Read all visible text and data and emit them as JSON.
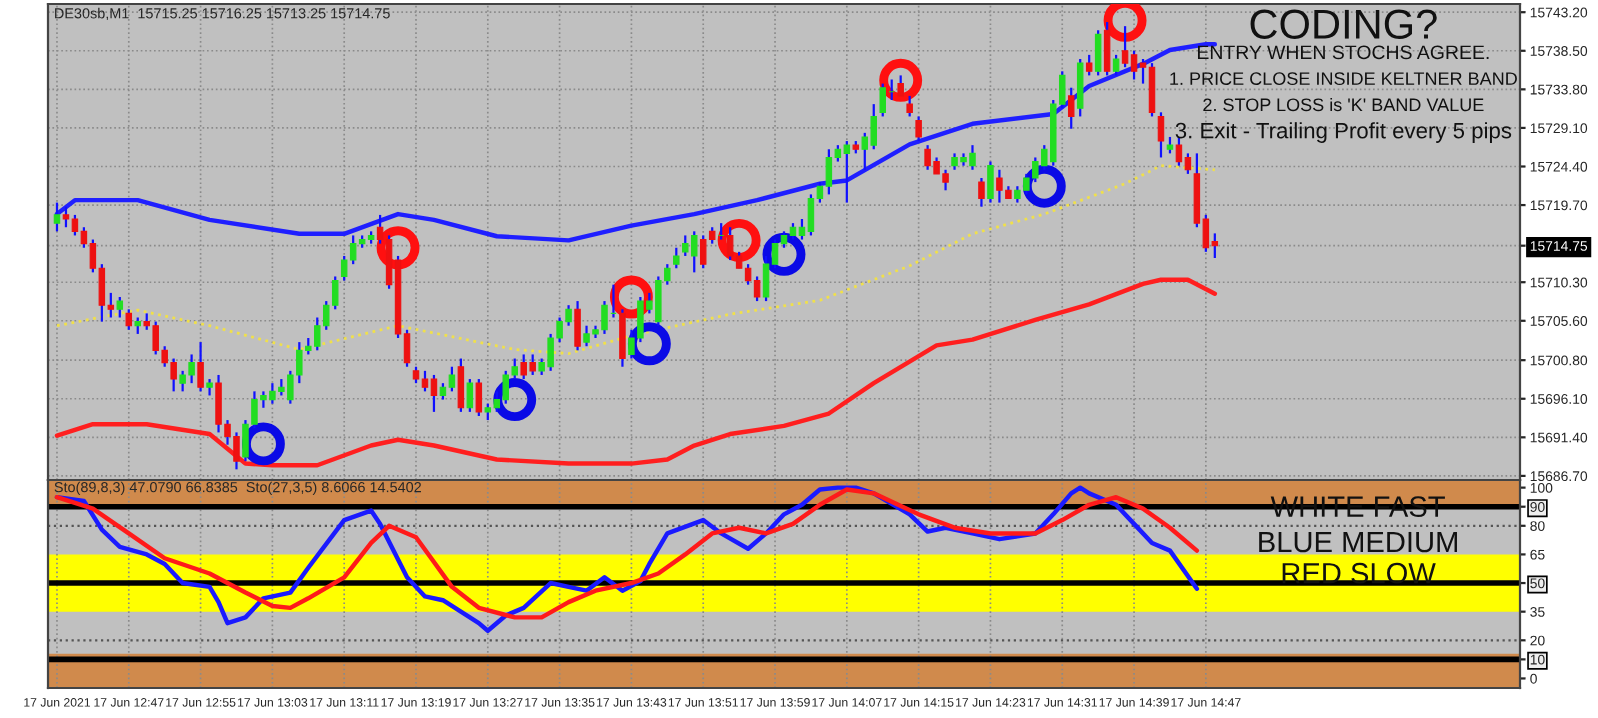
{
  "chart_data": [
    {
      "type": "candlestick",
      "title": "DE30sb,M1  15715.25 15716.25 15713.25 15714.75",
      "x": [
        "2021-06-17T12:39",
        "2021-06-17T12:40",
        "2021-06-17T12:41",
        "2021-06-17T12:42",
        "2021-06-17T12:43",
        "2021-06-17T12:44",
        "2021-06-17T12:45",
        "2021-06-17T12:46",
        "2021-06-17T12:47",
        "2021-06-17T12:48",
        "2021-06-17T12:49",
        "2021-06-17T12:50",
        "2021-06-17T12:51",
        "2021-06-17T12:52",
        "2021-06-17T12:53",
        "2021-06-17T12:54",
        "2021-06-17T12:55",
        "2021-06-17T12:56",
        "2021-06-17T12:57",
        "2021-06-17T12:58",
        "2021-06-17T12:59",
        "2021-06-17T13:00",
        "2021-06-17T13:01",
        "2021-06-17T13:02",
        "2021-06-17T13:03",
        "2021-06-17T13:04",
        "2021-06-17T13:05",
        "2021-06-17T13:06",
        "2021-06-17T13:07",
        "2021-06-17T13:08",
        "2021-06-17T13:09",
        "2021-06-17T13:10",
        "2021-06-17T13:11",
        "2021-06-17T13:12",
        "2021-06-17T13:13",
        "2021-06-17T13:14",
        "2021-06-17T13:15",
        "2021-06-17T13:16",
        "2021-06-17T13:17",
        "2021-06-17T13:18",
        "2021-06-17T13:19",
        "2021-06-17T13:20",
        "2021-06-17T13:21",
        "2021-06-17T13:22",
        "2021-06-17T13:23",
        "2021-06-17T13:24",
        "2021-06-17T13:25",
        "2021-06-17T13:26",
        "2021-06-17T13:27",
        "2021-06-17T13:28",
        "2021-06-17T13:29",
        "2021-06-17T13:30",
        "2021-06-17T13:31",
        "2021-06-17T13:32",
        "2021-06-17T13:33",
        "2021-06-17T13:34",
        "2021-06-17T13:35",
        "2021-06-17T13:36",
        "2021-06-17T13:37",
        "2021-06-17T13:38",
        "2021-06-17T13:39",
        "2021-06-17T13:40",
        "2021-06-17T13:41",
        "2021-06-17T13:42",
        "2021-06-17T13:43",
        "2021-06-17T13:44",
        "2021-06-17T13:45",
        "2021-06-17T13:46",
        "2021-06-17T13:47",
        "2021-06-17T13:48",
        "2021-06-17T13:49",
        "2021-06-17T13:50",
        "2021-06-17T13:51",
        "2021-06-17T13:52",
        "2021-06-17T13:53",
        "2021-06-17T13:54",
        "2021-06-17T13:55",
        "2021-06-17T13:56",
        "2021-06-17T13:57",
        "2021-06-17T13:58",
        "2021-06-17T13:59",
        "2021-06-17T14:00",
        "2021-06-17T14:01",
        "2021-06-17T14:02",
        "2021-06-17T14:03",
        "2021-06-17T14:04",
        "2021-06-17T14:05",
        "2021-06-17T14:06",
        "2021-06-17T14:07",
        "2021-06-17T14:08",
        "2021-06-17T14:09",
        "2021-06-17T14:10",
        "2021-06-17T14:11",
        "2021-06-17T14:12",
        "2021-06-17T14:13",
        "2021-06-17T14:14",
        "2021-06-17T14:15",
        "2021-06-17T14:16",
        "2021-06-17T14:17",
        "2021-06-17T14:18",
        "2021-06-17T14:19",
        "2021-06-17T14:20",
        "2021-06-17T14:21",
        "2021-06-17T14:22",
        "2021-06-17T14:23",
        "2021-06-17T14:24",
        "2021-06-17T14:25",
        "2021-06-17T14:26",
        "2021-06-17T14:27",
        "2021-06-17T14:28",
        "2021-06-17T14:29",
        "2021-06-17T14:30",
        "2021-06-17T14:31",
        "2021-06-17T14:32",
        "2021-06-17T14:33",
        "2021-06-17T14:34",
        "2021-06-17T14:35",
        "2021-06-17T14:36",
        "2021-06-17T14:37",
        "2021-06-17T14:38",
        "2021-06-17T14:39",
        "2021-06-17T14:40",
        "2021-06-17T14:41",
        "2021-06-17T14:42",
        "2021-06-17T14:43",
        "2021-06-17T14:44",
        "2021-06-17T14:45",
        "2021-06-17T14:46",
        "2021-06-17T14:47",
        "2021-06-17T14:48"
      ],
      "ohlc": [
        [
          15717.5,
          15720,
          15716.5,
          15718.5
        ],
        [
          15718.5,
          15719.5,
          15717,
          15718
        ],
        [
          15718,
          15718.5,
          15716,
          15716.5
        ],
        [
          15716.5,
          15717,
          15714.5,
          15715
        ],
        [
          15715,
          15715.5,
          15711.5,
          15712
        ],
        [
          15712,
          15712.5,
          15705.5,
          15707.5
        ],
        [
          15707.5,
          15709,
          15706,
          15707
        ],
        [
          15707,
          15708.5,
          15706,
          15708
        ],
        [
          15706.5,
          15707,
          15704.5,
          15705
        ],
        [
          15705,
          15706,
          15704,
          15705.5
        ],
        [
          15705.5,
          15706.5,
          15704.5,
          15705
        ],
        [
          15705,
          15705.5,
          15701.5,
          15702
        ],
        [
          15702,
          15702.5,
          15700,
          15700.5
        ],
        [
          15700.5,
          15701,
          15697,
          15698.5
        ],
        [
          15698,
          15699.5,
          15697,
          15699
        ],
        [
          15699,
          15701.5,
          15698,
          15700.5
        ],
        [
          15700.5,
          15703,
          15697,
          15697.5
        ],
        [
          15697.5,
          15698.5,
          15696.5,
          15698
        ],
        [
          15698,
          15699,
          15692,
          15693
        ],
        [
          15693,
          15693.5,
          15690.5,
          15691.5
        ],
        [
          15691.5,
          15692,
          15687.5,
          15688.5
        ],
        [
          15689,
          15693.5,
          15688.5,
          15693
        ],
        [
          15693,
          15697,
          15692.5,
          15696
        ],
        [
          15696,
          15697,
          15695,
          15696.5
        ],
        [
          15696,
          15698,
          15695.5,
          15697
        ],
        [
          15697,
          15698.5,
          15696.5,
          15697.5
        ],
        [
          15696,
          15699.5,
          15695.5,
          15699
        ],
        [
          15699,
          15703,
          15698,
          15702
        ],
        [
          15702,
          15703.5,
          15701.5,
          15702.5
        ],
        [
          15702.5,
          15706,
          15702,
          15705
        ],
        [
          15705,
          15708,
          15704.5,
          15707.5
        ],
        [
          15707.5,
          15711,
          15707,
          15710.5
        ],
        [
          15711,
          15713.5,
          15710.5,
          15713
        ],
        [
          15713,
          15716,
          15712.5,
          15715
        ],
        [
          15715,
          15716,
          15714.5,
          15715.5
        ],
        [
          15715.5,
          15716.5,
          15715,
          15716
        ],
        [
          15717,
          15718.5,
          15715,
          15715.5
        ],
        [
          15715.5,
          15716,
          15709.5,
          15710
        ],
        [
          15713,
          15713.5,
          15703.5,
          15704
        ],
        [
          15704,
          15704.5,
          15700,
          15700.5
        ],
        [
          15699.5,
          15700,
          15698,
          15698.5
        ],
        [
          15698.5,
          15699.5,
          15697,
          15697.5
        ],
        [
          15698.5,
          15699,
          15694.5,
          15696.5
        ],
        [
          15696.5,
          15698,
          15696,
          15697.5
        ],
        [
          15697.5,
          15700,
          15697,
          15699
        ],
        [
          15700,
          15701,
          15694.5,
          15695
        ],
        [
          15695,
          15698.5,
          15694.5,
          15698
        ],
        [
          15698,
          15698.5,
          15694,
          15694.5
        ],
        [
          15694.5,
          15695.5,
          15693.5,
          15695
        ],
        [
          15695,
          15697,
          15694.5,
          15696
        ],
        [
          15696,
          15699.5,
          15695.5,
          15699
        ],
        [
          15699,
          15701,
          15698.5,
          15700
        ],
        [
          15700.5,
          15701.5,
          15698.5,
          15699
        ],
        [
          15700.5,
          15701.5,
          15699,
          15699.5
        ],
        [
          15699.5,
          15701,
          15699,
          15700.5
        ],
        [
          15700,
          15704,
          15699.5,
          15703.5
        ],
        [
          15703.5,
          15706,
          15703,
          15705.5
        ],
        [
          15705.5,
          15707.5,
          15705,
          15707
        ],
        [
          15707,
          15708,
          15702,
          15702.5
        ],
        [
          15703,
          15705,
          15702.5,
          15704
        ],
        [
          15704,
          15705,
          15703.5,
          15704.5
        ],
        [
          15704.5,
          15708,
          15704,
          15707.5
        ],
        [
          15706.5,
          15710,
          15706,
          15706.5
        ],
        [
          15706.5,
          15707,
          15700,
          15701
        ],
        [
          15701.5,
          15704.5,
          15701,
          15703.5
        ],
        [
          15703.5,
          15708.5,
          15703,
          15708
        ],
        [
          15707,
          15709,
          15706.5,
          15708
        ],
        [
          15705.5,
          15711,
          15705,
          15710.5
        ],
        [
          15710.5,
          15712.5,
          15710,
          15712
        ],
        [
          15712.5,
          15714.5,
          15712,
          15713.5
        ],
        [
          15714,
          15716,
          15713.5,
          15715
        ],
        [
          15713.5,
          15716.5,
          15711.5,
          15716
        ],
        [
          15715.5,
          15716,
          15712,
          15712.5
        ],
        [
          15716.5,
          15717,
          15715,
          15715.5
        ],
        [
          15716,
          15717.5,
          15715.5,
          15716
        ],
        [
          15716,
          15717,
          15713,
          15713.5
        ],
        [
          15713.5,
          15714,
          15712,
          15712
        ],
        [
          15712,
          15712.5,
          15710,
          15710.5
        ],
        [
          15710.5,
          15711,
          15708,
          15708.5
        ],
        [
          15708.5,
          15713.5,
          15708,
          15712.5
        ],
        [
          15712.5,
          15715.5,
          15712,
          15715
        ],
        [
          15715,
          15716.5,
          15714.5,
          15716
        ],
        [
          15716,
          15717.5,
          15715.5,
          15717
        ],
        [
          15716,
          15718,
          15715.5,
          15717
        ],
        [
          15716.5,
          15721,
          15716,
          15720.5
        ],
        [
          15720.5,
          15722.5,
          15720,
          15722
        ],
        [
          15722,
          15726.5,
          15721,
          15725.5
        ],
        [
          15725.5,
          15727,
          15725,
          15726.5
        ],
        [
          15726,
          15727.5,
          15720,
          15727
        ],
        [
          15727,
          15727.5,
          15726,
          15726.5
        ],
        [
          15726.5,
          15728.5,
          15724,
          15728
        ],
        [
          15727,
          15732,
          15726.5,
          15730.5
        ],
        [
          15731,
          15734.5,
          15730.5,
          15734
        ],
        [
          15733.5,
          15735,
          15732.5,
          15733.5
        ],
        [
          15734.5,
          15735.5,
          15733,
          15733
        ],
        [
          15732,
          15733,
          15730.5,
          15731
        ],
        [
          15730,
          15730.5,
          15727.5,
          15728
        ],
        [
          15726.5,
          15727,
          15724,
          15724.5
        ],
        [
          15725,
          15725.5,
          15723.5,
          15723.5
        ],
        [
          15723.5,
          15724,
          15721.5,
          15722.5
        ],
        [
          15724.5,
          15726,
          15724,
          15725.5
        ],
        [
          15725,
          15726,
          15724.5,
          15725.5
        ],
        [
          15724.5,
          15727,
          15724,
          15726
        ],
        [
          15722.5,
          15723,
          15719.5,
          15720.5
        ],
        [
          15720.5,
          15725,
          15720,
          15724.5
        ],
        [
          15723,
          15724,
          15720,
          15721.5
        ],
        [
          15721.5,
          15722,
          15720.5,
          15720.5
        ],
        [
          15720.5,
          15722,
          15720,
          15721.5
        ],
        [
          15721.5,
          15723.5,
          15721,
          15723
        ],
        [
          15723,
          15725.5,
          15722.5,
          15725
        ],
        [
          15724.5,
          15727,
          15724,
          15726.5
        ],
        [
          15725,
          15732.5,
          15724.5,
          15732
        ],
        [
          15732,
          15736,
          15731.5,
          15735.5
        ],
        [
          15733,
          15734,
          15729,
          15730.5
        ],
        [
          15731.5,
          15737.5,
          15730.5,
          15737
        ],
        [
          15737,
          15738,
          15735.5,
          15736
        ],
        [
          15736,
          15741,
          15735.5,
          15740.5
        ],
        [
          15741,
          15742,
          15735.5,
          15736
        ],
        [
          15736,
          15738,
          15735.5,
          15737.5
        ],
        [
          15738.5,
          15741.5,
          15736.5,
          15737
        ],
        [
          15738,
          15738.5,
          15735,
          15736
        ],
        [
          15737,
          15737.5,
          15734.5,
          15736.5
        ],
        [
          15736.5,
          15737,
          15730.5,
          15731
        ],
        [
          15730.5,
          15731,
          15725.5,
          15727.5
        ],
        [
          15726.5,
          15728,
          15726,
          15727
        ],
        [
          15727,
          15728,
          15724.5,
          15725
        ],
        [
          15725.5,
          15726,
          15723.5,
          15724
        ],
        [
          15723.5,
          15726,
          15717,
          15717.5
        ],
        [
          15718,
          15718.5,
          15714,
          15714.5
        ],
        [
          15715.25,
          15716.25,
          15713.25,
          15714.75
        ]
      ],
      "series": [
        {
          "type": "line",
          "color": "#1f1fff",
          "line_style": "solid",
          "x": [
            "2021-06-17T12:39",
            "2021-06-17T12:41",
            "2021-06-17T12:48",
            "2021-06-17T12:56",
            "2021-06-17T13:06",
            "2021-06-17T13:11",
            "2021-06-17T13:17",
            "2021-06-17T13:21",
            "2021-06-17T13:28",
            "2021-06-17T13:36",
            "2021-06-17T13:43",
            "2021-06-17T13:50",
            "2021-06-17T13:57",
            "2021-06-17T14:04",
            "2021-06-17T14:07",
            "2021-06-17T14:14",
            "2021-06-17T14:21",
            "2021-06-17T14:30",
            "2021-06-17T14:34",
            "2021-06-17T14:40",
            "2021-06-17T14:43",
            "2021-06-17T14:47",
            "2021-06-17T14:48"
          ],
          "values": [
            15718.6,
            15720.3,
            15720.3,
            15717.9,
            15716.2,
            15716.2,
            15718.6,
            15717.9,
            15715.9,
            15715.4,
            15717.2,
            15718.6,
            15720.3,
            15722.3,
            15722.7,
            15727.1,
            15729.6,
            15730.8,
            15734.2,
            15736.9,
            15738.6,
            15739.3,
            15739.3
          ]
        },
        {
          "type": "line",
          "color": "#f0e04a",
          "line_style": "dotted",
          "x": [
            "2021-06-17T12:39",
            "2021-06-17T12:48",
            "2021-06-17T12:56",
            "2021-06-17T13:06",
            "2021-06-17T13:17",
            "2021-06-17T13:30",
            "2021-06-17T13:36",
            "2021-06-17T13:43",
            "2021-06-17T13:54",
            "2021-06-17T14:04",
            "2021-06-17T14:14",
            "2021-06-17T14:21",
            "2021-06-17T14:29",
            "2021-06-17T14:38",
            "2021-06-17T14:42",
            "2021-06-17T14:48"
          ],
          "values": [
            15705.0,
            15706.9,
            15705.0,
            15702.1,
            15705.0,
            15702.1,
            15701.6,
            15703.8,
            15706.4,
            15708.1,
            15712.3,
            15716.2,
            15718.6,
            15722.3,
            15724.5,
            15724.0
          ]
        },
        {
          "type": "line",
          "color": "#ff1f1f",
          "line_style": "solid",
          "x": [
            "2021-06-17T12:39",
            "2021-06-17T12:43",
            "2021-06-17T12:49",
            "2021-06-17T12:56",
            "2021-06-17T13:00",
            "2021-06-17T13:03",
            "2021-06-17T13:08",
            "2021-06-17T13:14",
            "2021-06-17T13:17",
            "2021-06-17T13:21",
            "2021-06-17T13:28",
            "2021-06-17T13:36",
            "2021-06-17T13:43",
            "2021-06-17T13:47",
            "2021-06-17T13:50",
            "2021-06-17T13:54",
            "2021-06-17T14:00",
            "2021-06-17T14:05",
            "2021-06-17T14:10",
            "2021-06-17T14:17",
            "2021-06-17T14:21",
            "2021-06-17T14:28",
            "2021-06-17T14:34",
            "2021-06-17T14:40",
            "2021-06-17T14:42",
            "2021-06-17T14:45",
            "2021-06-17T14:48"
          ],
          "values": [
            15691.6,
            15693.0,
            15693.0,
            15691.8,
            15688.2,
            15688.0,
            15688.0,
            15690.4,
            15691.1,
            15690.4,
            15688.7,
            15688.2,
            15688.2,
            15688.7,
            15690.4,
            15691.8,
            15692.8,
            15694.3,
            15698.0,
            15702.6,
            15703.3,
            15705.7,
            15707.6,
            15710.1,
            15710.6,
            15710.6,
            15708.9
          ]
        },
        {
          "type": "scatter",
          "marker": "circle",
          "color": "#ff1010",
          "x": [
            "2021-06-17T13:17",
            "2021-06-17T13:43",
            "2021-06-17T13:55",
            "2021-06-17T14:13",
            "2021-06-17T14:38"
          ],
          "values": [
            15714.5,
            15708.5,
            15715.4,
            15734.9,
            15742.2
          ]
        },
        {
          "type": "scatter",
          "marker": "circle",
          "color": "#0a0ae6",
          "x": [
            "2021-06-17T13:02",
            "2021-06-17T13:30",
            "2021-06-17T13:45",
            "2021-06-17T14:00",
            "2021-06-17T14:29"
          ],
          "values": [
            15690.6,
            15696.0,
            15702.8,
            15713.7,
            15722.0
          ]
        }
      ],
      "xlim": [
        "2021-06-17T12:38",
        "2021-06-17T15:22"
      ],
      "xticks": [
        {
          "value": "2021-06-17T12:39",
          "label": null
        },
        {
          "value": "2021-06-17T12:47",
          "label": null
        },
        {
          "value": "2021-06-17T12:55",
          "label": null
        },
        {
          "value": "2021-06-17T13:03",
          "label": null
        },
        {
          "value": "2021-06-17T13:11",
          "label": null
        },
        {
          "value": "2021-06-17T13:19",
          "label": null
        },
        {
          "value": "2021-06-17T13:27",
          "label": null
        },
        {
          "value": "2021-06-17T13:35",
          "label": null
        },
        {
          "value": "2021-06-17T13:43",
          "label": null
        },
        {
          "value": "2021-06-17T13:51",
          "label": null
        },
        {
          "value": "2021-06-17T13:59",
          "label": null
        },
        {
          "value": "2021-06-17T14:07",
          "label": null
        },
        {
          "value": "2021-06-17T14:15",
          "label": null
        },
        {
          "value": "2021-06-17T14:23",
          "label": null
        },
        {
          "value": "2021-06-17T14:31",
          "label": null
        },
        {
          "value": "2021-06-17T14:39",
          "label": null
        },
        {
          "value": "2021-06-17T14:47",
          "label": null
        }
      ],
      "ylim": [
        15686.2,
        15744.2
      ],
      "yticks": [
        {
          "value": 15743.2,
          "label": "15743.20"
        },
        {
          "value": 15738.5,
          "label": "15738.50"
        },
        {
          "value": 15733.8,
          "label": "15733.80"
        },
        {
          "value": 15729.1,
          "label": "15729.10"
        },
        {
          "value": 15724.4,
          "label": "15724.40"
        },
        {
          "value": 15719.7,
          "label": "15719.70"
        },
        15714.75,
        {
          "value": 15710.3,
          "label": "15710.30"
        },
        {
          "value": 15705.6,
          "label": "15705.60"
        },
        {
          "value": 15700.8,
          "label": "15700.80"
        },
        {
          "value": 15696.1,
          "label": "15696.10"
        },
        {
          "value": 15691.4,
          "label": "15691.40"
        },
        {
          "value": 15686.7,
          "label": "15686.70"
        }
      ],
      "grid": true,
      "tick_labels": "y",
      "annotations": [
        "CODING?",
        "ENTRY WHEN STOCHS AGREE.",
        "1. PRICE CLOSE INSIDE KELTNER BAND",
        "2. STOP LOSS is 'K' BAND VALUE",
        "3. Exit - Trailing Profit every 5 pips"
      ]
    },
    {
      "type": "line",
      "title": "Sto(89,8,3) 47.0790 66.8385  Sto(27,3,5) 8.6066 14.5402",
      "series": [
        {
          "color": "#1a1aff",
          "x": [
            "2021-06-17T12:39",
            "2021-06-17T12:42",
            "2021-06-17T12:44",
            "2021-06-17T12:46",
            "2021-06-17T12:49",
            "2021-06-17T12:51",
            "2021-06-17T12:53",
            "2021-06-17T12:56",
            "2021-06-17T12:57",
            "2021-06-17T12:58",
            "2021-06-17T13:00",
            "2021-06-17T13:02",
            "2021-06-17T13:05",
            "2021-06-17T13:07",
            "2021-06-17T13:11",
            "2021-06-17T13:14",
            "2021-06-17T13:15",
            "2021-06-17T13:18",
            "2021-06-17T13:20",
            "2021-06-17T13:22",
            "2021-06-17T13:23",
            "2021-06-17T13:26",
            "2021-06-17T13:27",
            "2021-06-17T13:29",
            "2021-06-17T13:31",
            "2021-06-17T13:34",
            "2021-06-17T13:36",
            "2021-06-17T13:38",
            "2021-06-17T13:40",
            "2021-06-17T13:42",
            "2021-06-17T13:44",
            "2021-06-17T13:45",
            "2021-06-17T13:47",
            "2021-06-17T13:51",
            "2021-06-17T13:53",
            "2021-06-17T13:56",
            "2021-06-17T13:58",
            "2021-06-17T14:00",
            "2021-06-17T14:02",
            "2021-06-17T14:04",
            "2021-06-17T14:06",
            "2021-06-17T14:08",
            "2021-06-17T14:10",
            "2021-06-17T14:14",
            "2021-06-17T14:16",
            "2021-06-17T14:18",
            "2021-06-17T14:21",
            "2021-06-17T14:24",
            "2021-06-17T14:28",
            "2021-06-17T14:30",
            "2021-06-17T14:32",
            "2021-06-17T14:33",
            "2021-06-17T14:34",
            "2021-06-17T14:37",
            "2021-06-17T14:39",
            "2021-06-17T14:41",
            "2021-06-17T14:43",
            "2021-06-17T14:46"
          ],
          "values": [
            95,
            93,
            78,
            69,
            65,
            60,
            50,
            48,
            40,
            29,
            32,
            42,
            45,
            58,
            83,
            88,
            81,
            53,
            43,
            41,
            38,
            29,
            25,
            33,
            37,
            50,
            48,
            46,
            53,
            46,
            51,
            60,
            76,
            83,
            76,
            68,
            76,
            86,
            91,
            99,
            100,
            100,
            97,
            86,
            77,
            79,
            76,
            73,
            76,
            86,
            97,
            100,
            97,
            91,
            81,
            71,
            67,
            47
          ]
        },
        {
          "color": "#ff1a1a",
          "x": [
            "2021-06-17T12:39",
            "2021-06-17T12:43",
            "2021-06-17T12:47",
            "2021-06-17T12:51",
            "2021-06-17T12:56",
            "2021-06-17T13:00",
            "2021-06-17T13:03",
            "2021-06-17T13:05",
            "2021-06-17T13:07",
            "2021-06-17T13:11",
            "2021-06-17T13:14",
            "2021-06-17T13:16",
            "2021-06-17T13:19",
            "2021-06-17T13:21",
            "2021-06-17T13:23",
            "2021-06-17T13:26",
            "2021-06-17T13:30",
            "2021-06-17T13:33",
            "2021-06-17T13:36",
            "2021-06-17T13:39",
            "2021-06-17T13:43",
            "2021-06-17T13:46",
            "2021-06-17T13:49",
            "2021-06-17T13:52",
            "2021-06-17T13:55",
            "2021-06-17T13:58",
            "2021-06-17T14:01",
            "2021-06-17T14:04",
            "2021-06-17T14:07",
            "2021-06-17T14:10",
            "2021-06-17T14:15",
            "2021-06-17T14:19",
            "2021-06-17T14:23",
            "2021-06-17T14:28",
            "2021-06-17T14:31",
            "2021-06-17T14:34",
            "2021-06-17T14:37",
            "2021-06-17T14:40",
            "2021-06-17T14:43",
            "2021-06-17T14:46"
          ],
          "values": [
            95,
            89,
            76,
            63,
            55,
            45,
            38,
            37,
            42,
            53,
            71,
            80,
            74,
            61,
            48,
            37,
            32,
            32,
            40,
            46,
            50,
            55,
            65,
            76,
            79,
            76,
            81,
            91,
            99,
            97,
            86,
            79,
            76,
            76,
            83,
            91,
            95,
            89,
            79,
            67
          ]
        }
      ],
      "xlim": [
        "2021-06-17T12:38",
        "2021-06-17T15:22"
      ],
      "xticks": [
        {
          "value": "2021-06-17T12:39",
          "label": "17 Jun 2021"
        },
        {
          "value": "2021-06-17T12:47",
          "label": "17 Jun 12:47"
        },
        {
          "value": "2021-06-17T12:55",
          "label": "17 Jun 12:55"
        },
        {
          "value": "2021-06-17T13:03",
          "label": "17 Jun 13:03"
        },
        {
          "value": "2021-06-17T13:11",
          "label": "17 Jun 13:11"
        },
        {
          "value": "2021-06-17T13:19",
          "label": "17 Jun 13:19"
        },
        {
          "value": "2021-06-17T13:27",
          "label": "17 Jun 13:27"
        },
        {
          "value": "2021-06-17T13:35",
          "label": "17 Jun 13:35"
        },
        {
          "value": "2021-06-17T13:43",
          "label": "17 Jun 13:43"
        },
        {
          "value": "2021-06-17T13:51",
          "label": "17 Jun 13:51"
        },
        {
          "value": "2021-06-17T13:59",
          "label": "17 Jun 13:59"
        },
        {
          "value": "2021-06-17T14:07",
          "label": "17 Jun 14:07"
        },
        {
          "value": "2021-06-17T14:15",
          "label": "17 Jun 14:15"
        },
        {
          "value": "2021-06-17T14:23",
          "label": "17 Jun 14:23"
        },
        {
          "value": "2021-06-17T14:31",
          "label": "17 Jun 14:31"
        },
        {
          "value": "2021-06-17T14:39",
          "label": "17 Jun 14:39"
        },
        {
          "value": "2021-06-17T14:47",
          "label": "17 Jun 14:47"
        }
      ],
      "ylim": [
        -5,
        104
      ],
      "yticks": [
        100,
        90,
        80,
        65,
        50,
        35,
        20,
        10,
        0
      ],
      "bands": [
        {
          "axis": "y",
          "from": 90,
          "to": 104,
          "color": "#d08a4c"
        },
        {
          "axis": "y",
          "from": 35,
          "to": 65,
          "color": "#ffff00"
        },
        {
          "axis": "y",
          "from": -5,
          "to": 13,
          "color": "#d08a4c"
        }
      ],
      "ref_lines": [
        {
          "axis": "y",
          "value": 90,
          "color": "#000000",
          "line_style": "solid"
        },
        {
          "axis": "y",
          "value": 80,
          "color": "#555555",
          "line_style": "dotted"
        },
        {
          "axis": "y",
          "value": 50,
          "color": "#000000",
          "line_style": "solid"
        },
        {
          "axis": "y",
          "value": 20,
          "color": "#555555",
          "line_style": "dotted"
        },
        {
          "axis": "y",
          "value": 10,
          "color": "#000000",
          "line_style": "solid"
        }
      ],
      "grid": "x",
      "annotations": [
        "WHITE FAST",
        "BLUE MEDIUM",
        "RED SLOW"
      ]
    }
  ]
}
